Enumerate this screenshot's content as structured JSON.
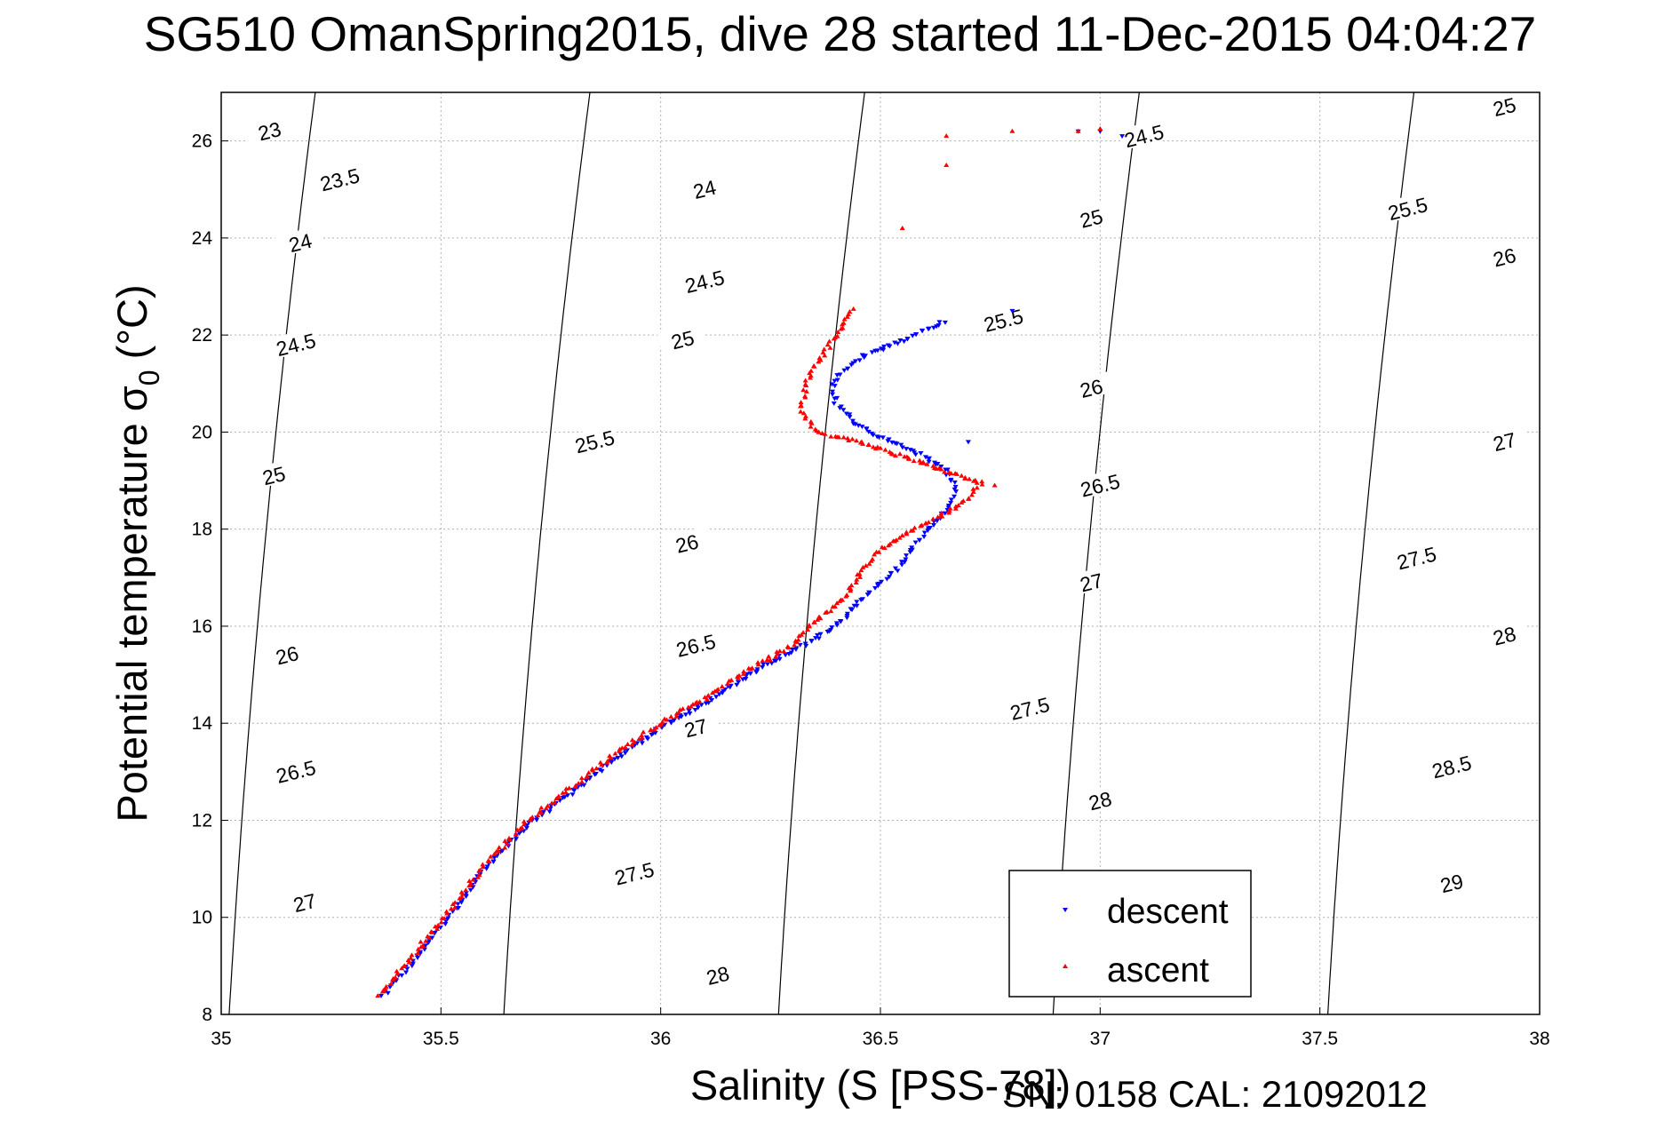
{
  "chart_data": {
    "type": "scatter",
    "title": "SG510 OmanSpring2015, dive 28 started 11-Dec-2015 04:04:27",
    "xlabel": "Salinity (S [PSS-78])",
    "ylabel": "Potential temperature σ",
    "ylabel_subscript": "0",
    "ylabel_unit": "(°C)",
    "xlim": [
      35,
      38
    ],
    "ylim": [
      8,
      27
    ],
    "xticks": [
      "35",
      "35.5",
      "36",
      "36.5",
      "37",
      "37.5",
      "38"
    ],
    "yticks": [
      "8",
      "10",
      "12",
      "14",
      "16",
      "18",
      "20",
      "22",
      "24",
      "26"
    ],
    "grid": true,
    "legend_position": "bottom-right",
    "series": [
      {
        "name": "descent",
        "color": "#0000ff",
        "marker": "triangle-down",
        "path": [
          [
            35.37,
            8.4
          ],
          [
            35.5,
            9.8
          ],
          [
            35.6,
            11.0
          ],
          [
            35.7,
            11.9
          ],
          [
            35.8,
            12.6
          ],
          [
            35.9,
            13.3
          ],
          [
            36.0,
            13.9
          ],
          [
            36.1,
            14.4
          ],
          [
            36.2,
            15.0
          ],
          [
            36.3,
            15.5
          ],
          [
            36.4,
            16.0
          ],
          [
            36.45,
            16.5
          ],
          [
            36.5,
            16.9
          ],
          [
            36.55,
            17.3
          ],
          [
            36.58,
            17.7
          ],
          [
            36.62,
            18.1
          ],
          [
            36.66,
            18.5
          ],
          [
            36.67,
            18.9
          ],
          [
            36.64,
            19.3
          ],
          [
            36.58,
            19.6
          ],
          [
            36.5,
            19.9
          ],
          [
            36.44,
            20.2
          ],
          [
            36.4,
            20.6
          ],
          [
            36.39,
            21.0
          ],
          [
            36.42,
            21.3
          ],
          [
            36.47,
            21.6
          ],
          [
            36.55,
            21.9
          ],
          [
            36.65,
            22.3
          ]
        ],
        "extra_points": [
          [
            37.05,
            26.1
          ],
          [
            37.0,
            26.2
          ],
          [
            36.95,
            26.2
          ],
          [
            36.7,
            19.8
          ],
          [
            36.8,
            22.5
          ]
        ]
      },
      {
        "name": "ascent",
        "color": "#ff0000",
        "marker": "triangle-up",
        "path": [
          [
            35.36,
            8.4
          ],
          [
            35.5,
            9.9
          ],
          [
            35.6,
            11.1
          ],
          [
            35.7,
            12.0
          ],
          [
            35.8,
            12.7
          ],
          [
            35.9,
            13.4
          ],
          [
            36.0,
            14.0
          ],
          [
            36.1,
            14.5
          ],
          [
            36.2,
            15.1
          ],
          [
            36.3,
            15.6
          ],
          [
            36.35,
            16.1
          ],
          [
            36.42,
            16.6
          ],
          [
            36.44,
            16.9
          ],
          [
            36.5,
            17.6
          ],
          [
            36.6,
            18.1
          ],
          [
            36.7,
            18.6
          ],
          [
            36.73,
            18.95
          ],
          [
            36.65,
            19.2
          ],
          [
            36.55,
            19.5
          ],
          [
            36.45,
            19.8
          ],
          [
            36.35,
            20.0
          ],
          [
            36.32,
            20.5
          ],
          [
            36.33,
            21.0
          ],
          [
            36.36,
            21.5
          ],
          [
            36.4,
            22.0
          ],
          [
            36.44,
            22.6
          ]
        ],
        "extra_points": [
          [
            36.95,
            26.2
          ],
          [
            37.0,
            26.25
          ],
          [
            36.8,
            26.2
          ],
          [
            36.65,
            26.1
          ],
          [
            36.55,
            24.2
          ],
          [
            36.65,
            25.5
          ],
          [
            36.76,
            18.9
          ]
        ]
      }
    ],
    "isopycnals": [
      {
        "sigma": 23,
        "label": "23"
      },
      {
        "sigma": 23.5,
        "label": "23.5"
      },
      {
        "sigma": 24,
        "label": "24"
      },
      {
        "sigma": 24.5,
        "label": "24.5"
      },
      {
        "sigma": 25,
        "label": "25"
      },
      {
        "sigma": 25.5,
        "label": "25.5"
      },
      {
        "sigma": 26,
        "label": "26"
      },
      {
        "sigma": 26.5,
        "label": "26.5"
      },
      {
        "sigma": 27,
        "label": "27"
      },
      {
        "sigma": 27.5,
        "label": "27.5"
      },
      {
        "sigma": 28,
        "label": "28"
      },
      {
        "sigma": 28.5,
        "label": "28.5"
      },
      {
        "sigma": 29,
        "label": "29"
      }
    ],
    "isopycnal_labels": [
      {
        "text": "23",
        "x": 35.11,
        "T": 26.2
      },
      {
        "text": "23.5",
        "x": 35.27,
        "T": 25.2
      },
      {
        "text": "24",
        "x": 35.18,
        "T": 23.9
      },
      {
        "text": "24.5",
        "x": 35.17,
        "T": 21.8
      },
      {
        "text": "25",
        "x": 35.12,
        "T": 19.1
      },
      {
        "text": "26",
        "x": 35.15,
        "T": 15.4
      },
      {
        "text": "26.5",
        "x": 35.17,
        "T": 13.0
      },
      {
        "text": "27",
        "x": 35.19,
        "T": 10.3
      },
      {
        "text": "24",
        "x": 36.1,
        "T": 25.0
      },
      {
        "text": "24.5",
        "x": 36.1,
        "T": 23.1
      },
      {
        "text": "25",
        "x": 36.05,
        "T": 21.9
      },
      {
        "text": "25.5",
        "x": 35.85,
        "T": 19.8
      },
      {
        "text": "26",
        "x": 36.06,
        "T": 17.7
      },
      {
        "text": "26.5",
        "x": 36.08,
        "T": 15.6
      },
      {
        "text": "27",
        "x": 36.08,
        "T": 13.9
      },
      {
        "text": "27.5",
        "x": 35.94,
        "T": 10.9
      },
      {
        "text": "28",
        "x": 36.13,
        "T": 8.8
      },
      {
        "text": "24.5",
        "x": 37.1,
        "T": 26.1
      },
      {
        "text": "25",
        "x": 36.98,
        "T": 24.4
      },
      {
        "text": "25.5",
        "x": 36.78,
        "T": 22.3
      },
      {
        "text": "26",
        "x": 36.98,
        "T": 20.9
      },
      {
        "text": "26.5",
        "x": 37.0,
        "T": 18.9
      },
      {
        "text": "27",
        "x": 36.98,
        "T": 16.9
      },
      {
        "text": "27.5",
        "x": 36.84,
        "T": 14.3
      },
      {
        "text": "28",
        "x": 37.0,
        "T": 12.4
      },
      {
        "text": "25",
        "x": 37.92,
        "T": 26.7
      },
      {
        "text": "25.5",
        "x": 37.7,
        "T": 24.6
      },
      {
        "text": "26",
        "x": 37.92,
        "T": 23.6
      },
      {
        "text": "27",
        "x": 37.92,
        "T": 19.8
      },
      {
        "text": "27.5",
        "x": 37.72,
        "T": 17.4
      },
      {
        "text": "28",
        "x": 37.92,
        "T": 15.8
      },
      {
        "text": "28.5",
        "x": 37.8,
        "T": 13.1
      },
      {
        "text": "29",
        "x": 37.8,
        "T": 10.7
      }
    ]
  },
  "legend": {
    "descent": "descent",
    "ascent": "ascent"
  },
  "footer": {
    "serial_cal": "SN: 0158  CAL: 21092012"
  }
}
